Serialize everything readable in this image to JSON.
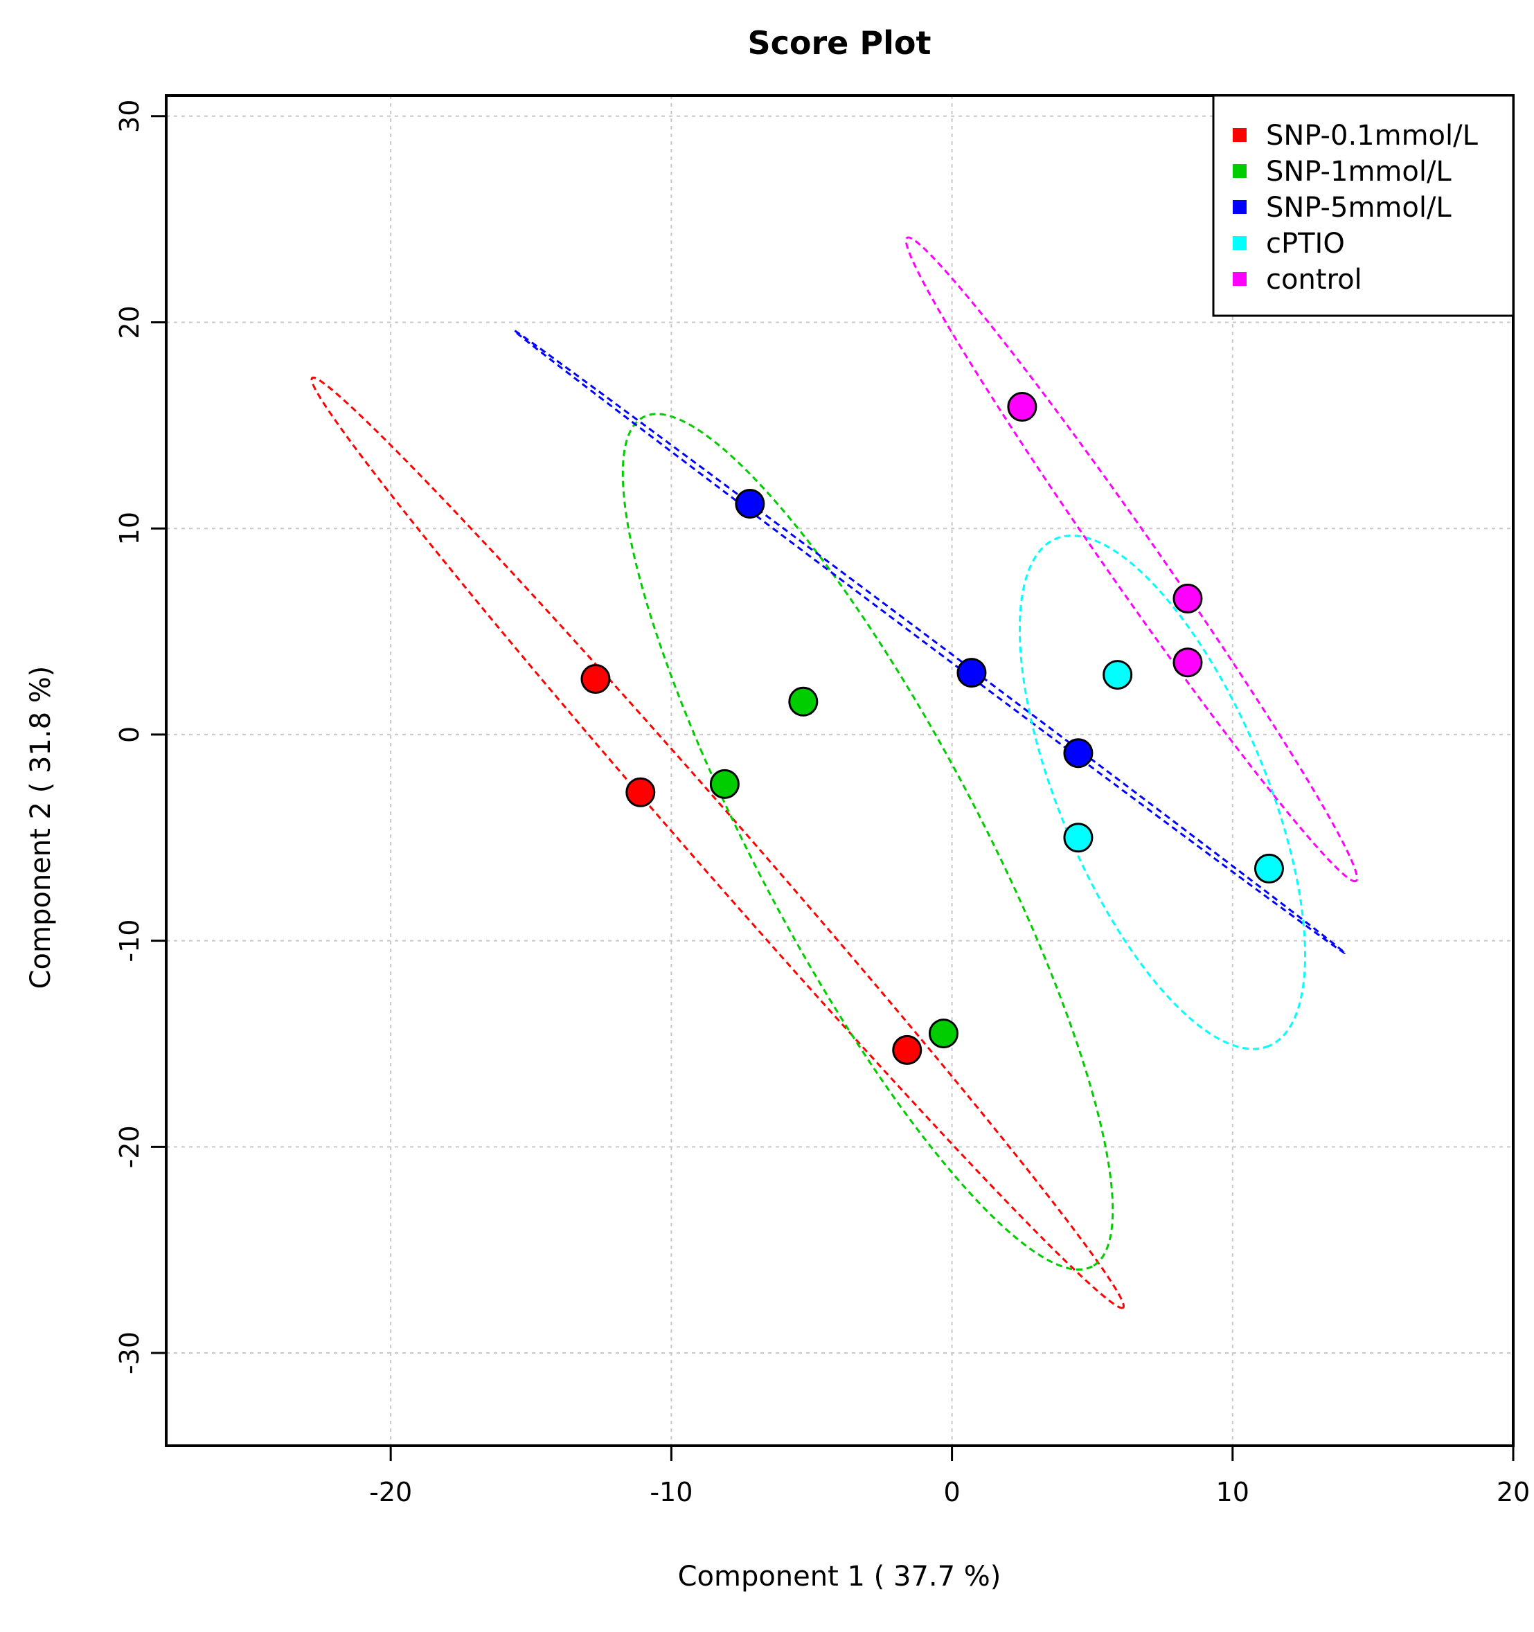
{
  "chart_data": {
    "type": "scatter",
    "title": "Score Plot",
    "xlabel": "Component 1 ( 37.7 %)",
    "ylabel": "Component 2 ( 31.8 %)",
    "xlim": [
      -28.0,
      20.0
    ],
    "ylim": [
      -34.5,
      31.0
    ],
    "xticks": [
      -20,
      -10,
      0,
      10,
      20
    ],
    "yticks": [
      -30,
      -20,
      -10,
      0,
      10,
      20,
      30
    ],
    "grid": true,
    "legend_position": "top-right",
    "series": [
      {
        "name": "SNP-0.1mmol/L",
        "color": "#ff0000",
        "points": [
          [
            -12.7,
            2.7
          ],
          [
            -11.1,
            -2.8
          ],
          [
            -1.6,
            -15.3
          ]
        ],
        "ellipse": [
          [
            -22.8,
            17.3
          ],
          [
            6.1,
            -27.8
          ]
        ]
      },
      {
        "name": "SNP-1mmol/L",
        "color": "#00cd00",
        "points": [
          [
            -5.3,
            1.6
          ],
          [
            -8.1,
            -2.4
          ],
          [
            -0.3,
            -14.5
          ]
        ],
        "ellipse": [
          [
            -11.0,
            15.4
          ],
          [
            5.0,
            -25.8
          ]
        ]
      },
      {
        "name": "SNP-5mmol/L",
        "color": "#0000ff",
        "points": [
          [
            -7.2,
            11.2
          ],
          [
            0.7,
            3.0
          ],
          [
            4.5,
            -0.9
          ]
        ],
        "ellipse": [
          [
            -15.6,
            19.6
          ],
          [
            14.0,
            -10.6
          ]
        ]
      },
      {
        "name": "cPTIO",
        "color": "#00ffff",
        "points": [
          [
            5.9,
            2.9
          ],
          [
            4.5,
            -5.0
          ],
          [
            11.3,
            -6.5
          ]
        ],
        "ellipse": [
          [
            3.7,
            9.5
          ],
          [
            11.3,
            -15.1
          ]
        ]
      },
      {
        "name": "control",
        "color": "#ff00ff",
        "points": [
          [
            2.5,
            15.9
          ],
          [
            8.4,
            6.6
          ],
          [
            8.4,
            3.5
          ]
        ],
        "ellipse": [
          [
            -1.6,
            24.1
          ],
          [
            14.4,
            -7.1
          ]
        ]
      }
    ]
  }
}
